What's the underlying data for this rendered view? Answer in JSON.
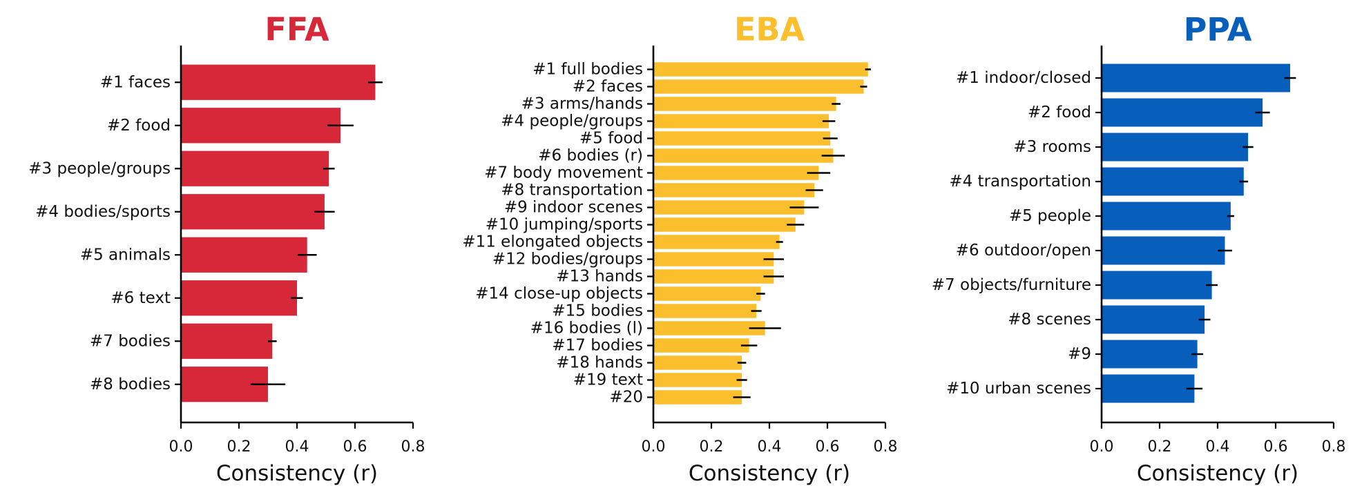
{
  "chart_data": [
    {
      "type": "bar",
      "orientation": "horizontal",
      "title": "FFA",
      "color": "#d62839",
      "xlabel": "Consistency (r)",
      "xlim": [
        0,
        0.8
      ],
      "xticks": [
        "0.0",
        "0.2",
        "0.4",
        "0.6",
        "0.8"
      ],
      "categories": [
        "#1 faces",
        "#2 food",
        "#3 people/groups",
        "#4 bodies/sports",
        "#5 animals",
        "#6 text",
        "#7 bodies",
        "#8 bodies"
      ],
      "values": [
        0.67,
        0.55,
        0.51,
        0.495,
        0.435,
        0.4,
        0.315,
        0.3
      ],
      "errors": [
        0.025,
        0.045,
        0.02,
        0.035,
        0.033,
        0.02,
        0.015,
        0.06
      ]
    },
    {
      "type": "bar",
      "orientation": "horizontal",
      "title": "EBA",
      "color": "#fbbf2e",
      "xlabel": "Consistency (r)",
      "xlim": [
        0,
        0.8
      ],
      "xticks": [
        "0.0",
        "0.2",
        "0.4",
        "0.6",
        "0.8"
      ],
      "categories": [
        "#1 full bodies",
        "#2 faces",
        "#3 arms/hands",
        "#4 people/groups",
        "#5 food",
        "#6 bodies (r)",
        "#7 body movement",
        "#8 transportation",
        "#9 indoor scenes",
        "#10 jumping/sports",
        "#11 elongated objects",
        "#12 bodies/groups",
        "#13 hands",
        "#14 close-up objects",
        "#15 bodies",
        "#16 bodies (l)",
        "#17 bodies",
        "#18 hands",
        "#19 text",
        "#20"
      ],
      "values": [
        0.74,
        0.725,
        0.63,
        0.605,
        0.61,
        0.62,
        0.57,
        0.555,
        0.52,
        0.49,
        0.435,
        0.415,
        0.415,
        0.37,
        0.355,
        0.385,
        0.33,
        0.305,
        0.305,
        0.305
      ],
      "errors": [
        0.01,
        0.012,
        0.015,
        0.022,
        0.025,
        0.04,
        0.04,
        0.03,
        0.05,
        0.03,
        0.012,
        0.035,
        0.035,
        0.015,
        0.018,
        0.055,
        0.028,
        0.015,
        0.018,
        0.03
      ]
    },
    {
      "type": "bar",
      "orientation": "horizontal",
      "title": "PPA",
      "color": "#075ebb",
      "xlabel": "Consistency (r)",
      "xlim": [
        0,
        0.8
      ],
      "xticks": [
        "0.0",
        "0.2",
        "0.4",
        "0.6",
        "0.8"
      ],
      "categories": [
        "#1 indoor/closed",
        "#2 food",
        "#3 rooms",
        "#4 transportation",
        "#5 people",
        "#6 outdoor/open",
        "#7 objects/furniture",
        "#8 scenes",
        "#9",
        "#10 urban scenes"
      ],
      "values": [
        0.65,
        0.555,
        0.505,
        0.49,
        0.445,
        0.425,
        0.38,
        0.355,
        0.33,
        0.32
      ],
      "errors": [
        0.02,
        0.025,
        0.018,
        0.015,
        0.012,
        0.025,
        0.02,
        0.02,
        0.02,
        0.028
      ]
    }
  ]
}
